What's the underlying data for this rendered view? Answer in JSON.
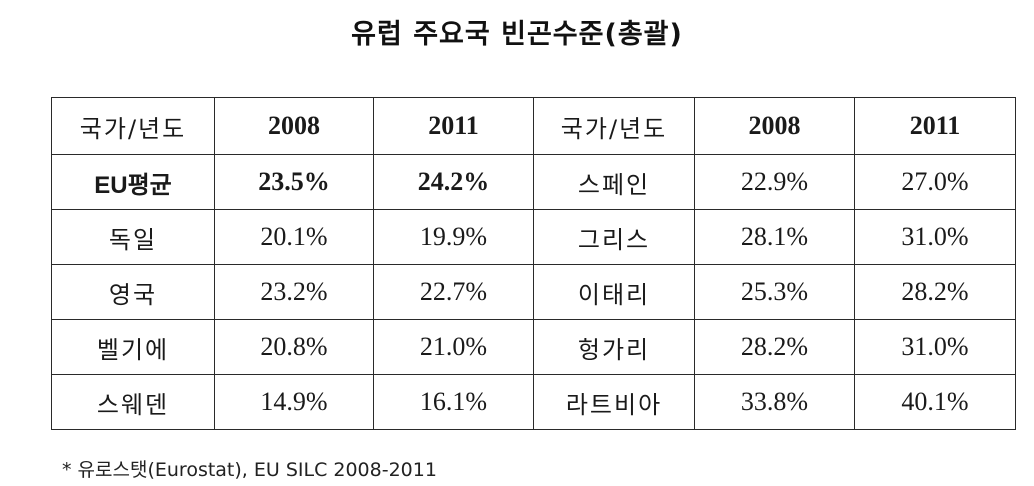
{
  "title": "유럽 주요국 빈곤수준(총괄)",
  "table": {
    "header": [
      "국가/년도",
      "2008",
      "2011",
      "국가/년도",
      "2008",
      "2011"
    ],
    "rows": [
      [
        "EU평균",
        "23.5%",
        "24.2%",
        "스페인",
        "22.9%",
        "27.0%"
      ],
      [
        "독일",
        "20.1%",
        "19.9%",
        "그리스",
        "28.1%",
        "31.0%"
      ],
      [
        "영국",
        "23.2%",
        "22.7%",
        "이태리",
        "25.3%",
        "28.2%"
      ],
      [
        "벨기에",
        "20.8%",
        "21.0%",
        "헝가리",
        "28.2%",
        "31.0%"
      ],
      [
        "스웨덴",
        "14.9%",
        "16.1%",
        "라트비아",
        "33.8%",
        "40.1%"
      ]
    ]
  },
  "footnote": "* 유로스탯(Eurostat), EU SILC 2008-2011"
}
